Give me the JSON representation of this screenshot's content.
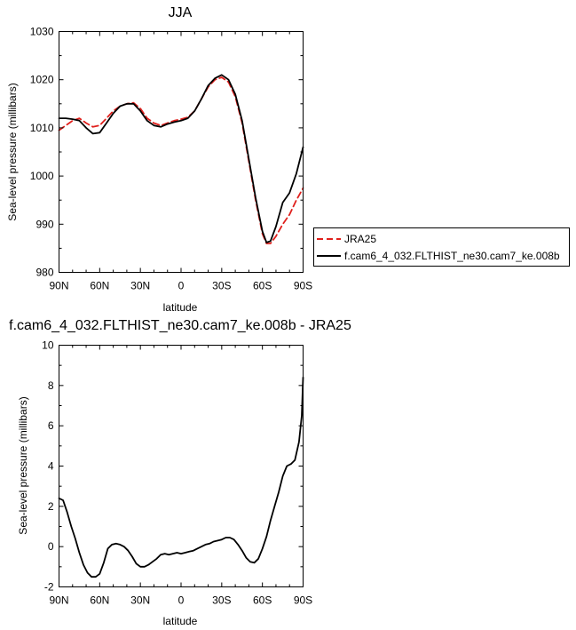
{
  "chart_data": [
    {
      "type": "line",
      "title": "JJA",
      "xlabel": "latitude",
      "ylabel": "Sea-level pressure (millibars)",
      "xticks": [
        90,
        60,
        30,
        0,
        -30,
        -60,
        -90
      ],
      "xtick_labels": [
        "90N",
        "60N",
        "30N",
        "0",
        "30S",
        "60S",
        "90S"
      ],
      "xlim": [
        90,
        -90
      ],
      "ylim": [
        980,
        1030
      ],
      "yticks": [
        980,
        990,
        1000,
        1010,
        1020,
        1030
      ],
      "ytick_labels": [
        "980",
        "990",
        "1000",
        "1010",
        "1020",
        "1030"
      ],
      "legend_placement": "right",
      "series": [
        {
          "name": "JRA25",
          "color": "#e0201c",
          "dash": "dashed",
          "points": [
            [
              90,
              1009.5
            ],
            [
              85,
              1010.5
            ],
            [
              80,
              1011.5
            ],
            [
              75,
              1012
            ],
            [
              70,
              1011
            ],
            [
              65,
              1010.2
            ],
            [
              60,
              1010.5
            ],
            [
              55,
              1012
            ],
            [
              50,
              1013.5
            ],
            [
              45,
              1014.5
            ],
            [
              40,
              1015
            ],
            [
              35,
              1015.2
            ],
            [
              30,
              1014
            ],
            [
              25,
              1012
            ],
            [
              20,
              1011
            ],
            [
              15,
              1010.5
            ],
            [
              10,
              1011
            ],
            [
              5,
              1011.5
            ],
            [
              0,
              1011.8
            ],
            [
              -5,
              1012.2
            ],
            [
              -10,
              1013.5
            ],
            [
              -15,
              1016
            ],
            [
              -20,
              1018.5
            ],
            [
              -25,
              1020
            ],
            [
              -30,
              1020.5
            ],
            [
              -35,
              1019.5
            ],
            [
              -40,
              1016.5
            ],
            [
              -45,
              1011
            ],
            [
              -50,
              1003
            ],
            [
              -55,
              995
            ],
            [
              -60,
              988
            ],
            [
              -63,
              986
            ],
            [
              -66,
              986
            ],
            [
              -70,
              987.5
            ],
            [
              -75,
              990
            ],
            [
              -80,
              992
            ],
            [
              -85,
              995
            ],
            [
              -90,
              997.5
            ]
          ]
        },
        {
          "name": "f.cam6_4_032.FLTHIST_ne30.cam7_ke.008b",
          "color": "#000000",
          "dash": "solid",
          "points": [
            [
              90,
              1012
            ],
            [
              85,
              1012
            ],
            [
              80,
              1011.8
            ],
            [
              75,
              1011.5
            ],
            [
              70,
              1010
            ],
            [
              65,
              1008.8
            ],
            [
              60,
              1009
            ],
            [
              55,
              1011
            ],
            [
              50,
              1013
            ],
            [
              45,
              1014.5
            ],
            [
              40,
              1015
            ],
            [
              35,
              1015
            ],
            [
              30,
              1013.5
            ],
            [
              25,
              1011.5
            ],
            [
              20,
              1010.5
            ],
            [
              15,
              1010.2
            ],
            [
              10,
              1010.8
            ],
            [
              5,
              1011.2
            ],
            [
              0,
              1011.5
            ],
            [
              -5,
              1012
            ],
            [
              -10,
              1013.5
            ],
            [
              -15,
              1016
            ],
            [
              -20,
              1018.8
            ],
            [
              -25,
              1020.3
            ],
            [
              -30,
              1021
            ],
            [
              -35,
              1020
            ],
            [
              -40,
              1017
            ],
            [
              -45,
              1011.5
            ],
            [
              -50,
              1003.5
            ],
            [
              -55,
              995.5
            ],
            [
              -60,
              988.5
            ],
            [
              -63,
              986.2
            ],
            [
              -66,
              986.5
            ],
            [
              -70,
              989.5
            ],
            [
              -75,
              994.5
            ],
            [
              -80,
              996.5
            ],
            [
              -85,
              1000.5
            ],
            [
              -90,
              1006
            ]
          ]
        }
      ]
    },
    {
      "type": "line",
      "title": "f.cam6_4_032.FLTHIST_ne30.cam7_ke.008b - JRA25",
      "xlabel": "latitude",
      "ylabel": "Sea-level pressure (millibars)",
      "xticks": [
        90,
        60,
        30,
        0,
        -30,
        -60,
        -90
      ],
      "xtick_labels": [
        "90N",
        "60N",
        "30N",
        "0",
        "30S",
        "60S",
        "90S"
      ],
      "xlim": [
        90,
        -90
      ],
      "ylim": [
        -2,
        10
      ],
      "yticks": [
        -2,
        0,
        2,
        4,
        6,
        8,
        10
      ],
      "ytick_labels": [
        "-2",
        "0",
        "2",
        "4",
        "6",
        "8",
        "10"
      ],
      "series": [
        {
          "color": "#000000",
          "dash": "solid",
          "points": [
            [
              90,
              2.4
            ],
            [
              87,
              2.3
            ],
            [
              84,
              1.7
            ],
            [
              81,
              1
            ],
            [
              78,
              0.4
            ],
            [
              75,
              -0.3
            ],
            [
              72,
              -0.9
            ],
            [
              69,
              -1.3
            ],
            [
              66,
              -1.5
            ],
            [
              63,
              -1.5
            ],
            [
              60,
              -1.35
            ],
            [
              57,
              -0.8
            ],
            [
              54,
              -0.1
            ],
            [
              51,
              0.1
            ],
            [
              48,
              0.15
            ],
            [
              45,
              0.1
            ],
            [
              42,
              0
            ],
            [
              39,
              -0.2
            ],
            [
              36,
              -0.5
            ],
            [
              33,
              -0.85
            ],
            [
              30,
              -1
            ],
            [
              27,
              -1
            ],
            [
              24,
              -0.9
            ],
            [
              21,
              -0.75
            ],
            [
              18,
              -0.6
            ],
            [
              15,
              -0.4
            ],
            [
              12,
              -0.35
            ],
            [
              9,
              -0.4
            ],
            [
              6,
              -0.35
            ],
            [
              3,
              -0.3
            ],
            [
              0,
              -0.35
            ],
            [
              -3,
              -0.3
            ],
            [
              -6,
              -0.25
            ],
            [
              -9,
              -0.2
            ],
            [
              -12,
              -0.1
            ],
            [
              -15,
              0
            ],
            [
              -18,
              0.1
            ],
            [
              -21,
              0.15
            ],
            [
              -24,
              0.25
            ],
            [
              -27,
              0.3
            ],
            [
              -30,
              0.35
            ],
            [
              -33,
              0.45
            ],
            [
              -36,
              0.45
            ],
            [
              -39,
              0.35
            ],
            [
              -42,
              0.1
            ],
            [
              -45,
              -0.2
            ],
            [
              -48,
              -0.55
            ],
            [
              -51,
              -0.75
            ],
            [
              -54,
              -0.8
            ],
            [
              -57,
              -0.6
            ],
            [
              -60,
              -0.1
            ],
            [
              -63,
              0.5
            ],
            [
              -66,
              1.3
            ],
            [
              -69,
              2
            ],
            [
              -72,
              2.7
            ],
            [
              -75,
              3.5
            ],
            [
              -78,
              4
            ],
            [
              -81,
              4.1
            ],
            [
              -84,
              4.3
            ],
            [
              -87,
              5.2
            ],
            [
              -89,
              6.5
            ],
            [
              -90,
              8.4
            ]
          ]
        }
      ]
    }
  ]
}
